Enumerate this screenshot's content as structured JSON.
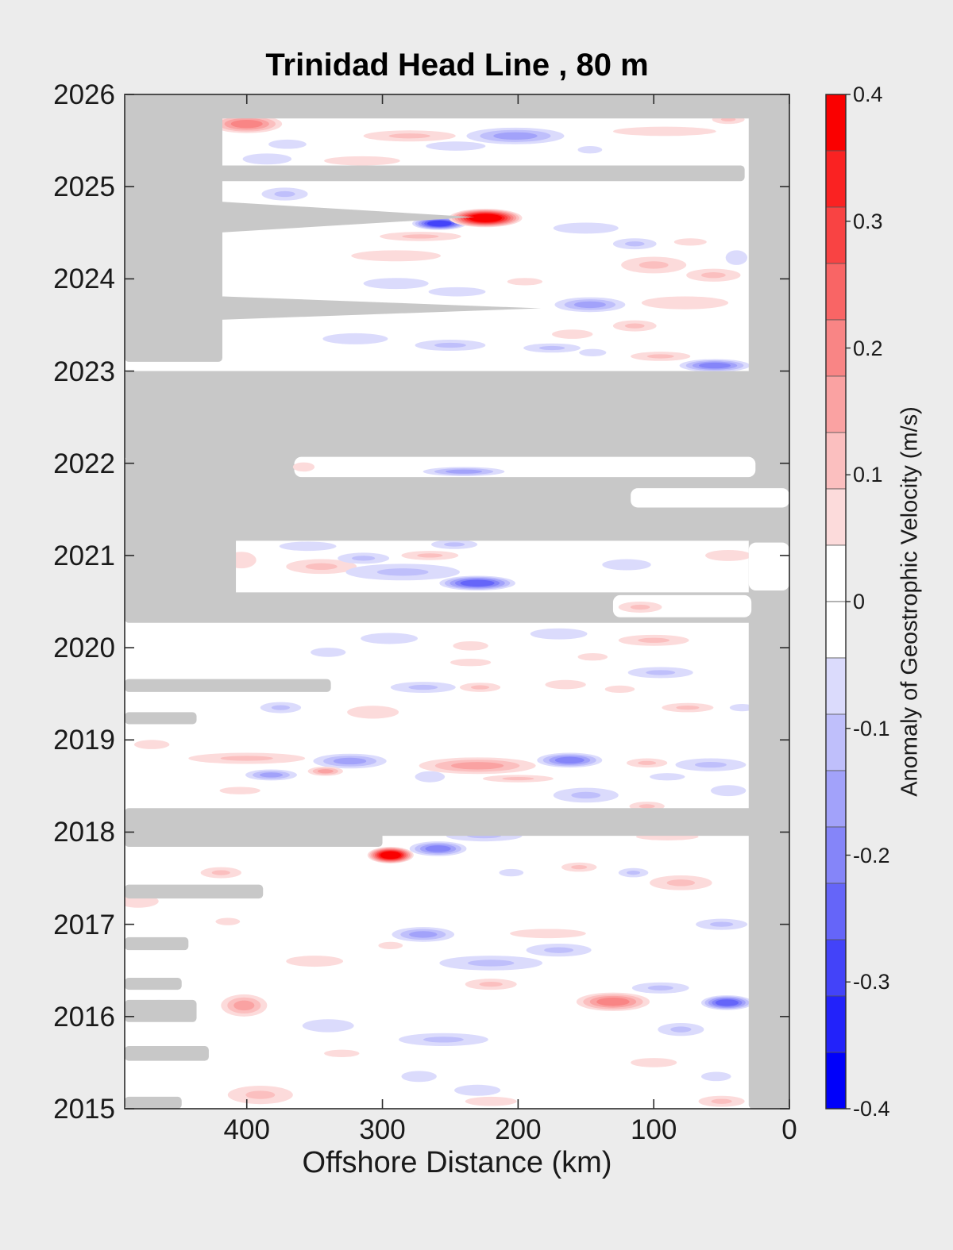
{
  "chart_data": {
    "type": "heatmap",
    "title": "Trinidad Head Line , 80 m",
    "xlabel": "Offshore Distance (km)",
    "x_ticks": [
      400,
      300,
      200,
      100,
      0
    ],
    "x_axis_reversed": true,
    "x_range_km": [
      490,
      0
    ],
    "y_ticks": [
      2015,
      2016,
      2017,
      2018,
      2019,
      2020,
      2021,
      2022,
      2023,
      2024,
      2025,
      2026
    ],
    "y_range": [
      2015,
      2026
    ],
    "grid": false,
    "colorbar": {
      "label": "Anomaly of Geostrophic Velocity (m/s)",
      "ticks": [
        0.4,
        0.3,
        0.2,
        0.1,
        0,
        -0.1,
        -0.2,
        -0.3,
        -0.4
      ],
      "tick_labels": [
        "0.4",
        "0.3",
        "0.2",
        "0.1",
        "0",
        "-0.1",
        "-0.2",
        "-0.3",
        "-0.4"
      ],
      "min": -0.4,
      "max": 0.4,
      "step": 0.05,
      "positive_colors": [
        "#fcdbdb",
        "#fbbfbf",
        "#faa2a2",
        "#f98585",
        "#f96565",
        "#f94343",
        "#fa2222",
        "#fa0000"
      ],
      "negative_colors": [
        "#dbdbfc",
        "#bfbffb",
        "#a2a2fa",
        "#8585f9",
        "#6565f9",
        "#4343f9",
        "#2222fa",
        "#0000fa"
      ],
      "zero_color": "#ffffff"
    },
    "colors": {
      "background": "#ececec",
      "missing": "#c8c8c8",
      "data_background": "#ffffff",
      "frame": "#2b2b2b"
    },
    "missing_regions": [
      {
        "km": [
          0,
          30
        ],
        "yr": [
          2015,
          2026
        ]
      },
      {
        "km": [
          0,
          490
        ],
        "yr": [
          2025.74,
          2026
        ]
      },
      {
        "km": [
          418,
          490
        ],
        "yr": [
          2023.1,
          2026
        ]
      },
      {
        "km": [
          33,
          452
        ],
        "yr": [
          2025.06,
          2025.23
        ]
      },
      {
        "poly": [
          [
            490,
            2024.9
          ],
          [
            232,
            2024.67
          ],
          [
            490,
            2024.44
          ]
        ]
      },
      {
        "poly": [
          [
            490,
            2023.85
          ],
          [
            183,
            2023.68
          ],
          [
            490,
            2023.52
          ]
        ]
      },
      {
        "km": [
          0,
          490
        ],
        "yr": [
          2022.04,
          2023.0
        ]
      },
      {
        "km": [
          0,
          490
        ],
        "yr": [
          2021.16,
          2022.06
        ]
      },
      {
        "km": [
          408,
          490
        ],
        "yr": [
          2020.52,
          2021.2
        ]
      },
      {
        "km": [
          0,
          490
        ],
        "yr": [
          2020.27,
          2020.6
        ]
      },
      {
        "km": [
          338,
          490
        ],
        "yr": [
          2019.52,
          2019.66
        ]
      },
      {
        "km": [
          437,
          490
        ],
        "yr": [
          2019.17,
          2019.3
        ]
      },
      {
        "km": [
          0,
          490
        ],
        "yr": [
          2017.96,
          2018.26
        ]
      },
      {
        "km": [
          300,
          490
        ],
        "yr": [
          2017.84,
          2018.05
        ]
      },
      {
        "km": [
          388,
          490
        ],
        "yr": [
          2017.28,
          2017.43
        ]
      },
      {
        "km": [
          443,
          490
        ],
        "yr": [
          2016.72,
          2016.86
        ]
      },
      {
        "km": [
          448,
          490
        ],
        "yr": [
          2016.29,
          2016.42
        ]
      },
      {
        "km": [
          437,
          490
        ],
        "yr": [
          2015.94,
          2016.18
        ]
      },
      {
        "km": [
          428,
          490
        ],
        "yr": [
          2015.52,
          2015.68
        ]
      },
      {
        "km": [
          448,
          490
        ],
        "yr": [
          2015.0,
          2015.13
        ]
      }
    ],
    "data_patches_over_missing": [
      {
        "km": [
          25,
          365
        ],
        "yr": [
          2021.85,
          2022.07
        ]
      },
      {
        "km": [
          0,
          117
        ],
        "yr": [
          2021.52,
          2021.73
        ]
      },
      {
        "km": [
          28,
          130
        ],
        "yr": [
          2020.33,
          2020.57
        ]
      },
      {
        "km": [
          0,
          30
        ],
        "yr": [
          2020.62,
          2021.14
        ]
      }
    ],
    "anomalies_format": "[offshore_km, year, anomaly_m_per_s, radius_km, radius_yr]",
    "anomalies": [
      [
        400,
        2025.68,
        0.18,
        26,
        0.1
      ],
      [
        280,
        2025.55,
        0.08,
        34,
        0.06
      ],
      [
        202,
        2025.55,
        -0.15,
        36,
        0.09
      ],
      [
        246,
        2025.44,
        -0.07,
        22,
        0.05
      ],
      [
        370,
        2025.46,
        -0.06,
        14,
        0.05
      ],
      [
        92,
        2025.6,
        0.07,
        38,
        0.05
      ],
      [
        45,
        2025.73,
        0.08,
        12,
        0.05
      ],
      [
        147,
        2025.4,
        -0.05,
        9,
        0.04
      ],
      [
        385,
        2025.3,
        -0.07,
        18,
        0.06
      ],
      [
        315,
        2025.28,
        0.07,
        28,
        0.05
      ],
      [
        372,
        2024.92,
        -0.08,
        17,
        0.07
      ],
      [
        258,
        2024.6,
        -0.3,
        20,
        0.07
      ],
      [
        224,
        2024.66,
        0.38,
        27,
        0.1
      ],
      [
        272,
        2024.46,
        0.08,
        30,
        0.05
      ],
      [
        150,
        2024.55,
        -0.06,
        24,
        0.06
      ],
      [
        114,
        2024.38,
        -0.12,
        16,
        0.06
      ],
      [
        73,
        2024.4,
        0.07,
        12,
        0.04
      ],
      [
        39,
        2024.23,
        -0.07,
        8,
        0.08
      ],
      [
        56,
        2024.04,
        0.12,
        20,
        0.07
      ],
      [
        100,
        2024.15,
        0.08,
        24,
        0.09
      ],
      [
        290,
        2024.25,
        0.07,
        33,
        0.06
      ],
      [
        290,
        2023.95,
        -0.07,
        24,
        0.06
      ],
      [
        245,
        2023.86,
        -0.07,
        21,
        0.05
      ],
      [
        195,
        2023.97,
        0.06,
        13,
        0.04
      ],
      [
        147,
        2023.72,
        -0.15,
        26,
        0.08
      ],
      [
        77,
        2023.74,
        0.07,
        32,
        0.07
      ],
      [
        114,
        2023.49,
        0.08,
        16,
        0.06
      ],
      [
        160,
        2023.4,
        0.07,
        15,
        0.05
      ],
      [
        320,
        2023.35,
        -0.07,
        24,
        0.06
      ],
      [
        250,
        2023.28,
        -0.08,
        26,
        0.06
      ],
      [
        175,
        2023.25,
        -0.1,
        21,
        0.05
      ],
      [
        145,
        2023.2,
        -0.06,
        10,
        0.04
      ],
      [
        95,
        2023.16,
        0.09,
        22,
        0.05
      ],
      [
        55,
        2023.06,
        -0.2,
        26,
        0.07
      ],
      [
        404,
        2020.95,
        0.07,
        11,
        0.09
      ],
      [
        355,
        2021.1,
        -0.07,
        21,
        0.05
      ],
      [
        345,
        2020.88,
        0.08,
        26,
        0.08
      ],
      [
        314,
        2020.97,
        -0.12,
        19,
        0.06
      ],
      [
        265,
        2021.0,
        0.08,
        21,
        0.05
      ],
      [
        247,
        2021.12,
        -0.12,
        17,
        0.05
      ],
      [
        230,
        2020.7,
        -0.25,
        28,
        0.08
      ],
      [
        285,
        2020.82,
        -0.08,
        42,
        0.09
      ],
      [
        45,
        2021.0,
        0.07,
        17,
        0.06
      ],
      [
        120,
        2020.9,
        -0.06,
        18,
        0.06
      ],
      [
        295,
        2020.1,
        -0.07,
        21,
        0.06
      ],
      [
        235,
        2020.02,
        0.06,
        13,
        0.05
      ],
      [
        170,
        2020.15,
        -0.07,
        21,
        0.06
      ],
      [
        100,
        2020.08,
        0.09,
        26,
        0.06
      ],
      [
        145,
        2019.9,
        0.06,
        11,
        0.04
      ],
      [
        235,
        2019.84,
        0.07,
        15,
        0.04
      ],
      [
        340,
        2019.95,
        -0.06,
        13,
        0.05
      ],
      [
        270,
        2019.57,
        -0.08,
        24,
        0.06
      ],
      [
        228,
        2019.57,
        0.08,
        15,
        0.05
      ],
      [
        165,
        2019.6,
        0.07,
        15,
        0.05
      ],
      [
        95,
        2019.73,
        -0.08,
        24,
        0.06
      ],
      [
        375,
        2019.35,
        -0.08,
        15,
        0.06
      ],
      [
        307,
        2019.3,
        0.07,
        19,
        0.07
      ],
      [
        75,
        2019.35,
        0.08,
        19,
        0.05
      ],
      [
        35,
        2019.35,
        -0.06,
        9,
        0.04
      ],
      [
        125,
        2019.55,
        0.06,
        11,
        0.04
      ],
      [
        470,
        2018.95,
        0.07,
        13,
        0.05
      ],
      [
        400,
        2018.8,
        0.08,
        43,
        0.06
      ],
      [
        324,
        2018.77,
        -0.15,
        27,
        0.08
      ],
      [
        230,
        2018.72,
        0.16,
        43,
        0.09
      ],
      [
        162,
        2018.78,
        -0.22,
        24,
        0.08
      ],
      [
        105,
        2018.75,
        0.1,
        15,
        0.05
      ],
      [
        58,
        2018.73,
        -0.1,
        26,
        0.07
      ],
      [
        382,
        2018.62,
        -0.15,
        19,
        0.06
      ],
      [
        342,
        2018.66,
        0.15,
        13,
        0.05
      ],
      [
        265,
        2018.6,
        -0.07,
        11,
        0.06
      ],
      [
        200,
        2018.58,
        0.08,
        26,
        0.04
      ],
      [
        90,
        2018.6,
        -0.07,
        13,
        0.04
      ],
      [
        405,
        2018.45,
        0.07,
        15,
        0.04
      ],
      [
        150,
        2018.4,
        -0.1,
        24,
        0.08
      ],
      [
        105,
        2018.28,
        0.08,
        13,
        0.05
      ],
      [
        45,
        2018.45,
        -0.07,
        13,
        0.06
      ],
      [
        294,
        2017.75,
        0.4,
        17,
        0.09
      ],
      [
        259,
        2017.82,
        -0.2,
        21,
        0.08
      ],
      [
        225,
        2017.96,
        -0.08,
        28,
        0.06
      ],
      [
        90,
        2017.95,
        0.07,
        23,
        0.04
      ],
      [
        419,
        2017.56,
        0.08,
        15,
        0.06
      ],
      [
        480,
        2017.25,
        0.07,
        15,
        0.07
      ],
      [
        414,
        2017.03,
        0.06,
        9,
        0.04
      ],
      [
        270,
        2016.89,
        -0.15,
        23,
        0.08
      ],
      [
        178,
        2016.9,
        0.07,
        28,
        0.05
      ],
      [
        170,
        2016.72,
        -0.1,
        24,
        0.07
      ],
      [
        220,
        2016.58,
        -0.08,
        38,
        0.08
      ],
      [
        350,
        2016.6,
        0.07,
        21,
        0.06
      ],
      [
        294,
        2016.77,
        0.06,
        9,
        0.04
      ],
      [
        50,
        2017.0,
        -0.08,
        19,
        0.06
      ],
      [
        80,
        2017.45,
        0.08,
        23,
        0.08
      ],
      [
        115,
        2017.56,
        -0.12,
        11,
        0.05
      ],
      [
        155,
        2017.62,
        0.1,
        13,
        0.05
      ],
      [
        205,
        2017.56,
        -0.07,
        9,
        0.04
      ],
      [
        402,
        2016.12,
        0.15,
        17,
        0.12
      ],
      [
        465,
        2016.1,
        -0.06,
        11,
        0.08
      ],
      [
        220,
        2016.35,
        0.1,
        19,
        0.06
      ],
      [
        130,
        2016.16,
        0.2,
        27,
        0.1
      ],
      [
        46,
        2016.15,
        -0.25,
        19,
        0.08
      ],
      [
        95,
        2016.31,
        -0.1,
        21,
        0.06
      ],
      [
        80,
        2015.86,
        -0.12,
        17,
        0.07
      ],
      [
        340,
        2015.9,
        -0.07,
        19,
        0.07
      ],
      [
        255,
        2015.75,
        -0.08,
        33,
        0.07
      ],
      [
        330,
        2015.6,
        0.06,
        13,
        0.04
      ],
      [
        273,
        2015.35,
        -0.07,
        13,
        0.06
      ],
      [
        230,
        2015.2,
        -0.07,
        17,
        0.06
      ],
      [
        390,
        2015.15,
        0.08,
        24,
        0.1
      ],
      [
        220,
        2015.08,
        0.07,
        19,
        0.05
      ],
      [
        100,
        2015.5,
        0.07,
        17,
        0.05
      ],
      [
        54,
        2015.35,
        -0.07,
        11,
        0.05
      ],
      [
        50,
        2015.08,
        0.1,
        17,
        0.06
      ]
    ],
    "anomalies_over_patches": [
      [
        358,
        2021.96,
        0.07,
        8,
        0.05
      ],
      [
        240,
        2021.91,
        -0.15,
        30,
        0.05
      ],
      [
        110,
        2020.44,
        0.1,
        16,
        0.06
      ]
    ]
  }
}
